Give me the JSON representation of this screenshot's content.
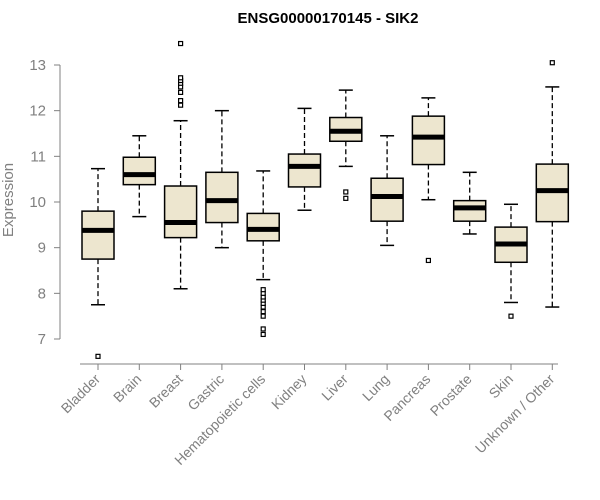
{
  "chart_data": {
    "type": "boxplot",
    "title": "ENSG00000170145 - SIK2",
    "xlabel": "",
    "ylabel": "Expression",
    "ylim": [
      6.5,
      13.6
    ],
    "yticks": [
      7,
      8,
      9,
      10,
      11,
      12,
      13
    ],
    "box_fill": "#ede6cf",
    "categories": [
      "Bladder",
      "Brain",
      "Breast",
      "Gastric",
      "Hematopoietic cells",
      "Kidney",
      "Liver",
      "Lung",
      "Pancreas",
      "Prostate",
      "Skin",
      "Unknown / Other"
    ],
    "boxes": [
      {
        "name": "Bladder",
        "whisker_low": 7.75,
        "q1": 8.75,
        "median": 9.38,
        "q3": 9.8,
        "whisker_high": 10.73,
        "outliers": [
          6.62
        ]
      },
      {
        "name": "Brain",
        "whisker_low": 9.68,
        "q1": 10.38,
        "median": 10.6,
        "q3": 10.98,
        "whisker_high": 11.45,
        "outliers": []
      },
      {
        "name": "Breast",
        "whisker_low": 8.1,
        "q1": 9.22,
        "median": 9.55,
        "q3": 10.35,
        "whisker_high": 11.78,
        "outliers": [
          12.12,
          12.22,
          12.4,
          12.52,
          12.6,
          12.66,
          12.72,
          13.47
        ]
      },
      {
        "name": "Gastric",
        "whisker_low": 9.0,
        "q1": 9.55,
        "median": 10.03,
        "q3": 10.65,
        "whisker_high": 12.0,
        "outliers": []
      },
      {
        "name": "Hematopoietic cells",
        "whisker_low": 8.3,
        "q1": 9.15,
        "median": 9.4,
        "q3": 9.75,
        "whisker_high": 10.68,
        "outliers": [
          7.1,
          7.22,
          7.5,
          7.6,
          7.7,
          7.78,
          7.85,
          7.92,
          8.0,
          8.08
        ]
      },
      {
        "name": "Kidney",
        "whisker_low": 9.82,
        "q1": 10.33,
        "median": 10.78,
        "q3": 11.05,
        "whisker_high": 12.05,
        "outliers": []
      },
      {
        "name": "Liver",
        "whisker_low": 10.78,
        "q1": 11.33,
        "median": 11.55,
        "q3": 11.85,
        "whisker_high": 12.45,
        "outliers": [
          10.08,
          10.22
        ]
      },
      {
        "name": "Lung",
        "whisker_low": 9.05,
        "q1": 9.58,
        "median": 10.12,
        "q3": 10.52,
        "whisker_high": 11.45,
        "outliers": []
      },
      {
        "name": "Pancreas",
        "whisker_low": 10.05,
        "q1": 10.82,
        "median": 11.42,
        "q3": 11.88,
        "whisker_high": 12.28,
        "outliers": [
          8.72
        ]
      },
      {
        "name": "Prostate",
        "whisker_low": 9.3,
        "q1": 9.58,
        "median": 9.87,
        "q3": 10.03,
        "whisker_high": 10.65,
        "outliers": []
      },
      {
        "name": "Skin",
        "whisker_low": 7.8,
        "q1": 8.68,
        "median": 9.08,
        "q3": 9.45,
        "whisker_high": 9.95,
        "outliers": [
          7.5
        ]
      },
      {
        "name": "Unknown / Other",
        "whisker_low": 7.7,
        "q1": 9.57,
        "median": 10.25,
        "q3": 10.83,
        "whisker_high": 12.52,
        "outliers": [
          13.05
        ]
      }
    ]
  }
}
